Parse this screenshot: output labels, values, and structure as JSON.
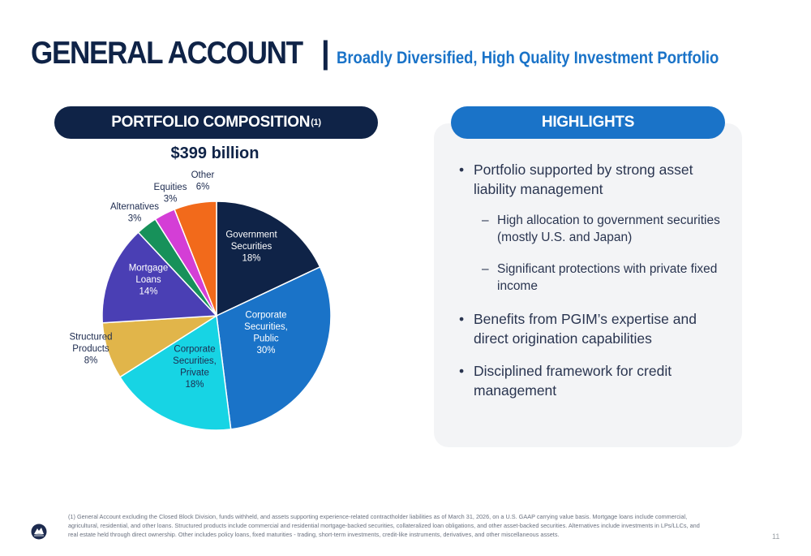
{
  "header": {
    "title": "GENERAL ACCOUNT",
    "separator": "|",
    "subtitle": "Broadly Diversified, High Quality Investment Portfolio"
  },
  "left_panel": {
    "heading": "PORTFOLIO COMPOSITION",
    "heading_sup": "(1)",
    "total": "$399 billion"
  },
  "right_panel": {
    "heading": "HIGHLIGHTS",
    "bullets": [
      {
        "text": "Portfolio supported by strong asset liability management",
        "subs": [
          "High allocation to government securities (mostly U.S. and Japan)",
          "Significant protections with private fixed income"
        ]
      },
      {
        "text": "Benefits from PGIM’s expertise and direct origination capabilities",
        "subs": []
      },
      {
        "text": "Disciplined framework for credit management",
        "subs": []
      }
    ]
  },
  "chart_data": {
    "type": "pie",
    "title": "",
    "unit": "%",
    "slices": [
      {
        "label": [
          "Government",
          "Securities"
        ],
        "value": 18,
        "display": "18%",
        "color": "#0f2347",
        "label_color": "#ffffff"
      },
      {
        "label": [
          "Corporate",
          "Securities,",
          "Public"
        ],
        "value": 30,
        "display": "30%",
        "color": "#1a73c8",
        "label_color": "#ffffff"
      },
      {
        "label": [
          "Corporate",
          "Securities,",
          "Private"
        ],
        "value": 18,
        "display": "18%",
        "color": "#17d4e4",
        "label_color": "#1d2b4f"
      },
      {
        "label": [
          "Structured",
          "Products"
        ],
        "value": 8,
        "display": "8%",
        "color": "#e1b54a",
        "label_color": "#1d2b4f"
      },
      {
        "label": [
          "Mortgage",
          "Loans"
        ],
        "value": 14,
        "display": "14%",
        "color": "#4a3fb4",
        "label_color": "#ffffff"
      },
      {
        "label": [
          "Alternatives"
        ],
        "value": 3,
        "display": "3%",
        "color": "#17915a",
        "label_color": "#1d2b4f"
      },
      {
        "label": [
          "Equities"
        ],
        "value": 3,
        "display": "3%",
        "color": "#d43ed6",
        "label_color": "#1d2b4f"
      },
      {
        "label": [
          "Other"
        ],
        "value": 6,
        "display": "6%",
        "color": "#f26a1b",
        "label_color": "#1d2b4f"
      }
    ]
  },
  "footnote": "(1) General Account excluding the Closed Block Division, funds withheld, and assets supporting experience-related contractholder liabilities as of March 31, 2026, on a U.S. GAAP carrying value basis. Mortgage loans include commercial, agricultural, residential, and other loans. Structured products include commercial and residential mortgage-backed securities, collateralized loan obligations, and other asset-backed securities. Alternatives include investments in LPs/LLCs, and real estate held through direct ownership. Other includes policy loans, fixed maturities - trading, short-term investments, credit-like instruments, derivatives, and other miscellaneous assets.",
  "page_number": "11"
}
